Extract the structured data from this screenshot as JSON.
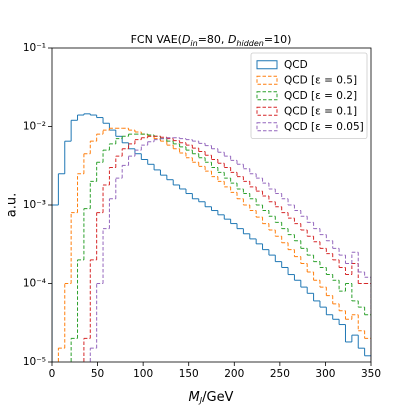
{
  "chart_data": {
    "type": "histogram",
    "title": [
      "FCN VAE(",
      "D",
      "in",
      "=80, ",
      "D",
      "hidden",
      "=10)"
    ],
    "x_label": [
      "M",
      "J",
      "/GeV"
    ],
    "y_label": "a.u.",
    "log_y": true,
    "legend_loc": "upper right",
    "xlim": [
      0,
      350
    ],
    "xticks": [
      0,
      50,
      100,
      150,
      200,
      250,
      300,
      350
    ],
    "ylim": [
      1e-05,
      0.1
    ],
    "yticks": [
      {
        "value": 1e-05,
        "label": "10⁻⁵"
      },
      {
        "value": 0.0001,
        "label": "10⁻⁴"
      },
      {
        "value": 0.001,
        "label": "10⁻³"
      },
      {
        "value": 0.01,
        "label": "10⁻²"
      },
      {
        "value": 0.1,
        "label": "10⁻¹"
      }
    ],
    "bins": [
      0,
      7,
      14,
      21,
      28,
      35,
      42,
      49,
      56,
      63,
      70,
      77,
      84,
      91,
      98,
      105,
      112,
      119,
      126,
      133,
      140,
      147,
      154,
      161,
      168,
      175,
      182,
      189,
      196,
      203,
      210,
      217,
      224,
      231,
      238,
      245,
      252,
      259,
      266,
      273,
      280,
      287,
      294,
      301,
      308,
      315,
      322,
      329,
      336,
      343,
      350
    ],
    "series": [
      {
        "name": "QCD",
        "color": "#1f77b4",
        "dashed": false,
        "values": [
          0.001,
          0.0025,
          0.0065,
          0.012,
          0.014,
          0.0145,
          0.014,
          0.013,
          0.011,
          0.009,
          0.0075,
          0.0062,
          0.0052,
          0.0045,
          0.0038,
          0.0033,
          0.0028,
          0.0024,
          0.0021,
          0.0018,
          0.0016,
          0.0014,
          0.0012,
          0.0011,
          0.00095,
          0.00085,
          0.00075,
          0.00066,
          0.00058,
          0.0005,
          0.00043,
          0.00037,
          0.00032,
          0.00027,
          0.00023,
          0.00019,
          0.00016,
          0.00013,
          0.00011,
          9e-05,
          7.5e-05,
          6e-05,
          5e-05,
          4e-05,
          3.5e-05,
          3e-05,
          1.8e-05,
          2.2e-05,
          1.5e-05,
          1.2e-05
        ]
      },
      {
        "name": "QCD [ε = 0.5]",
        "color": "#ff7f0e",
        "dashed": true,
        "values": [
          null,
          1.5e-05,
          0.0001,
          0.0008,
          0.0025,
          0.0045,
          0.0065,
          0.008,
          0.009,
          0.0095,
          0.0095,
          0.0095,
          0.009,
          0.0085,
          0.008,
          0.0075,
          0.007,
          0.0065,
          0.0058,
          0.0052,
          0.0046,
          0.004,
          0.0035,
          0.0031,
          0.0027,
          0.0023,
          0.002,
          0.0017,
          0.00145,
          0.0012,
          0.001,
          0.00085,
          0.0007,
          0.00058,
          0.00048,
          0.0004,
          0.00033,
          0.00027,
          0.00022,
          0.00018,
          0.00014,
          0.00011,
          9e-05,
          7e-05,
          5.5e-05,
          4.5e-05,
          3.5e-05,
          4e-05,
          2.5e-05,
          2e-05
        ]
      },
      {
        "name": "QCD [ε = 0.2]",
        "color": "#2ca02c",
        "dashed": true,
        "values": [
          null,
          null,
          null,
          2e-05,
          0.0002,
          0.0009,
          0.002,
          0.0035,
          0.005,
          0.006,
          0.007,
          0.0075,
          0.008,
          0.008,
          0.008,
          0.0078,
          0.0075,
          0.007,
          0.0065,
          0.006,
          0.0055,
          0.005,
          0.0045,
          0.004,
          0.0035,
          0.003,
          0.0026,
          0.0022,
          0.0019,
          0.0016,
          0.0014,
          0.0012,
          0.001,
          0.00085,
          0.00072,
          0.0006,
          0.0005,
          0.00042,
          0.00035,
          0.00028,
          0.00023,
          0.00019,
          0.00016,
          0.00013,
          0.00011,
          8e-05,
          0.0001,
          6e-05,
          5e-05,
          4e-05
        ]
      },
      {
        "name": "QCD [ε = 0.1]",
        "color": "#d62728",
        "dashed": true,
        "values": [
          null,
          null,
          null,
          null,
          null,
          2e-05,
          0.0002,
          0.0008,
          0.0018,
          0.003,
          0.0042,
          0.0052,
          0.006,
          0.0068,
          0.0072,
          0.0075,
          0.0075,
          0.0073,
          0.007,
          0.0066,
          0.0062,
          0.0058,
          0.0053,
          0.0048,
          0.0043,
          0.0038,
          0.0034,
          0.003,
          0.0026,
          0.0023,
          0.002,
          0.0017,
          0.0015,
          0.0013,
          0.0011,
          0.00095,
          0.0008,
          0.00068,
          0.00058,
          0.00048,
          0.0004,
          0.00034,
          0.00028,
          0.00024,
          0.0002,
          0.00016,
          0.00013,
          0.00018,
          0.0001,
          0.0001
        ]
      },
      {
        "name": "QCD [ε = 0.05]",
        "color": "#9467bd",
        "dashed": true,
        "values": [
          null,
          null,
          null,
          null,
          null,
          null,
          1.5e-05,
          0.0001,
          0.0005,
          0.0012,
          0.0022,
          0.0032,
          0.0042,
          0.005,
          0.0058,
          0.0064,
          0.0068,
          0.007,
          0.0072,
          0.0072,
          0.007,
          0.0068,
          0.0065,
          0.0061,
          0.0057,
          0.0052,
          0.0047,
          0.0042,
          0.0037,
          0.0033,
          0.0029,
          0.0025,
          0.0022,
          0.0019,
          0.0016,
          0.0014,
          0.0012,
          0.001,
          0.00085,
          0.00072,
          0.0006,
          0.0005,
          0.00042,
          0.00035,
          0.00028,
          0.00023,
          0.00018,
          0.00025,
          0.00014,
          0.00012
        ]
      }
    ]
  }
}
